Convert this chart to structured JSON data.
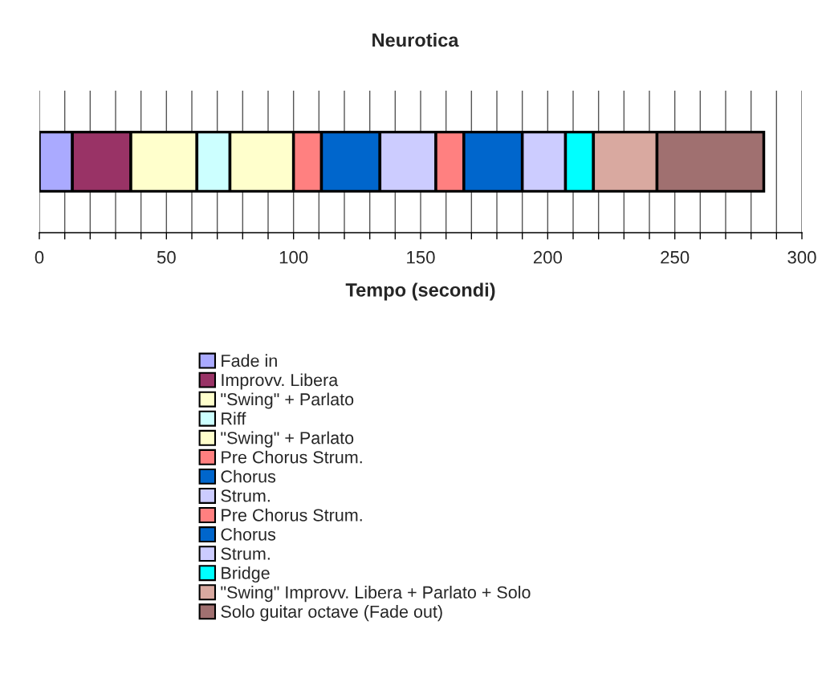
{
  "chart_data": {
    "type": "bar",
    "title": "Neurotica",
    "xlabel": "Tempo (secondi)",
    "orientation": "horizontal",
    "stacked": true,
    "categories": [
      null
    ],
    "series": [
      {
        "name": "Fade in",
        "color": "#aaaaff",
        "values": [
          13
        ]
      },
      {
        "name": "Improvv. Libera",
        "color": "#993366",
        "values": [
          23
        ]
      },
      {
        "name": "\"Swing\" + Parlato",
        "color": "#ffffcc",
        "values": [
          26
        ]
      },
      {
        "name": "Riff",
        "color": "#ccffff",
        "values": [
          13
        ]
      },
      {
        "name": "\"Swing\" + Parlato",
        "color": "#ffffcc",
        "values": [
          25
        ]
      },
      {
        "name": "Pre Chorus Strum.",
        "color": "#ff8080",
        "values": [
          11
        ]
      },
      {
        "name": "Chorus",
        "color": "#0066cc",
        "values": [
          23
        ]
      },
      {
        "name": "Strum.",
        "color": "#ccccff",
        "values": [
          22
        ]
      },
      {
        "name": "Pre Chorus Strum.",
        "color": "#ff8080",
        "values": [
          11
        ]
      },
      {
        "name": "Chorus",
        "color": "#0066cc",
        "values": [
          23
        ]
      },
      {
        "name": "Strum.",
        "color": "#ccccff",
        "values": [
          17
        ]
      },
      {
        "name": "Bridge",
        "color": "#00ffff",
        "values": [
          11
        ]
      },
      {
        "name": "\"Swing\" Improvv. Libera + Parlato + Solo",
        "color": "#d9a9a0",
        "values": [
          25
        ]
      },
      {
        "name": "Solo guitar octave (Fade out)",
        "color": "#a07070",
        "values": [
          42
        ]
      }
    ],
    "xlim": [
      0,
      300
    ],
    "xticks": [
      0,
      {
        "value": 10,
        "label": null
      },
      {
        "value": 20,
        "label": null
      },
      {
        "value": 30,
        "label": null
      },
      {
        "value": 40,
        "label": null
      },
      50,
      {
        "value": 60,
        "label": null
      },
      {
        "value": 70,
        "label": null
      },
      {
        "value": 80,
        "label": null
      },
      {
        "value": 90,
        "label": null
      },
      100,
      {
        "value": 110,
        "label": null
      },
      {
        "value": 120,
        "label": null
      },
      {
        "value": 130,
        "label": null
      },
      {
        "value": 140,
        "label": null
      },
      150,
      {
        "value": 160,
        "label": null
      },
      {
        "value": 170,
        "label": null
      },
      {
        "value": 180,
        "label": null
      },
      {
        "value": 190,
        "label": null
      },
      200,
      {
        "value": 210,
        "label": null
      },
      {
        "value": 220,
        "label": null
      },
      {
        "value": 230,
        "label": null
      },
      {
        "value": 240,
        "label": null
      },
      250,
      {
        "value": 260,
        "label": null
      },
      {
        "value": 270,
        "label": null
      },
      {
        "value": 280,
        "label": null
      },
      {
        "value": 290,
        "label": null
      },
      300
    ],
    "grid": "x",
    "legend": "bottom",
    "tick_labels": "x"
  }
}
